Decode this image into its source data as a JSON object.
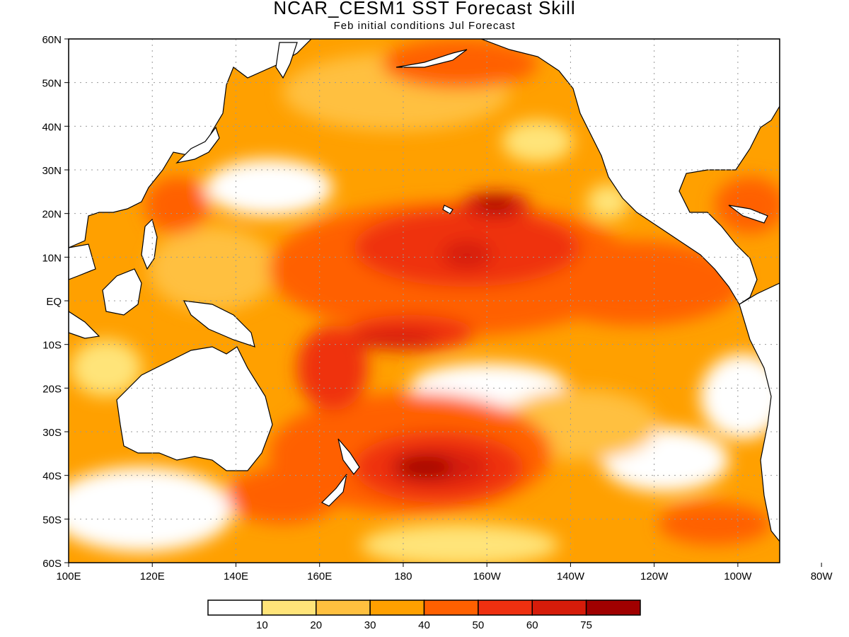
{
  "title": "NCAR_CESM1  SST Forecast Skill",
  "subtitle": "Feb initial conditions   Jul Forecast",
  "axes": {
    "lat_labels": [
      "60N",
      "50N",
      "40N",
      "30N",
      "20N",
      "10N",
      "EQ",
      "10S",
      "20S",
      "30S",
      "40S",
      "50S",
      "60S"
    ],
    "lon_labels": [
      "100E",
      "120E",
      "140E",
      "160E",
      "180",
      "160W",
      "140W",
      "120W",
      "100W",
      "80W"
    ]
  },
  "legend": {
    "labels": [
      "10",
      "20",
      "30",
      "40",
      "50",
      "60",
      "75"
    ],
    "colors": [
      "#ffffff",
      "#ffe479",
      "#ffc03f",
      "#ffa000",
      "#ff6000",
      "#ef3010",
      "#d61c0a",
      "#a00000"
    ]
  },
  "colors": {
    "land": "#ffffff",
    "coastline": "#000000",
    "grid": "#9a9a9a"
  }
}
